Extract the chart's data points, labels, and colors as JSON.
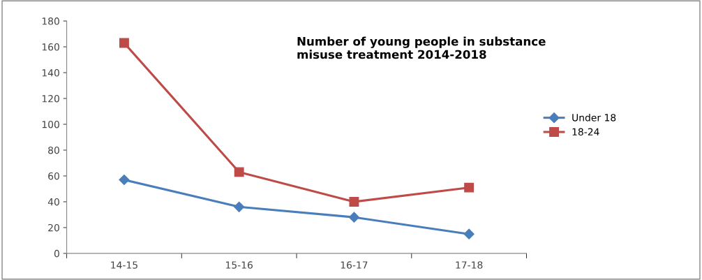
{
  "chart_data": {
    "type": "line",
    "title": "Number of young people in substance\nmisuse treatment 2014-2018",
    "categories": [
      "14-15",
      "15-16",
      "16-17",
      "17-18"
    ],
    "series": [
      {
        "name": "Under 18",
        "color": "#4a7ebb",
        "values": [
          57,
          36,
          28,
          15
        ],
        "marker": "diamond"
      },
      {
        "name": "18-24",
        "color": "#be4b48",
        "values": [
          163,
          63,
          40,
          51
        ],
        "marker": "square"
      }
    ],
    "ylim": [
      0,
      180
    ],
    "yticks": [
      0,
      20,
      40,
      60,
      80,
      100,
      120,
      140,
      160,
      180
    ],
    "grid": false,
    "legend": "right",
    "line_style": "solid"
  }
}
